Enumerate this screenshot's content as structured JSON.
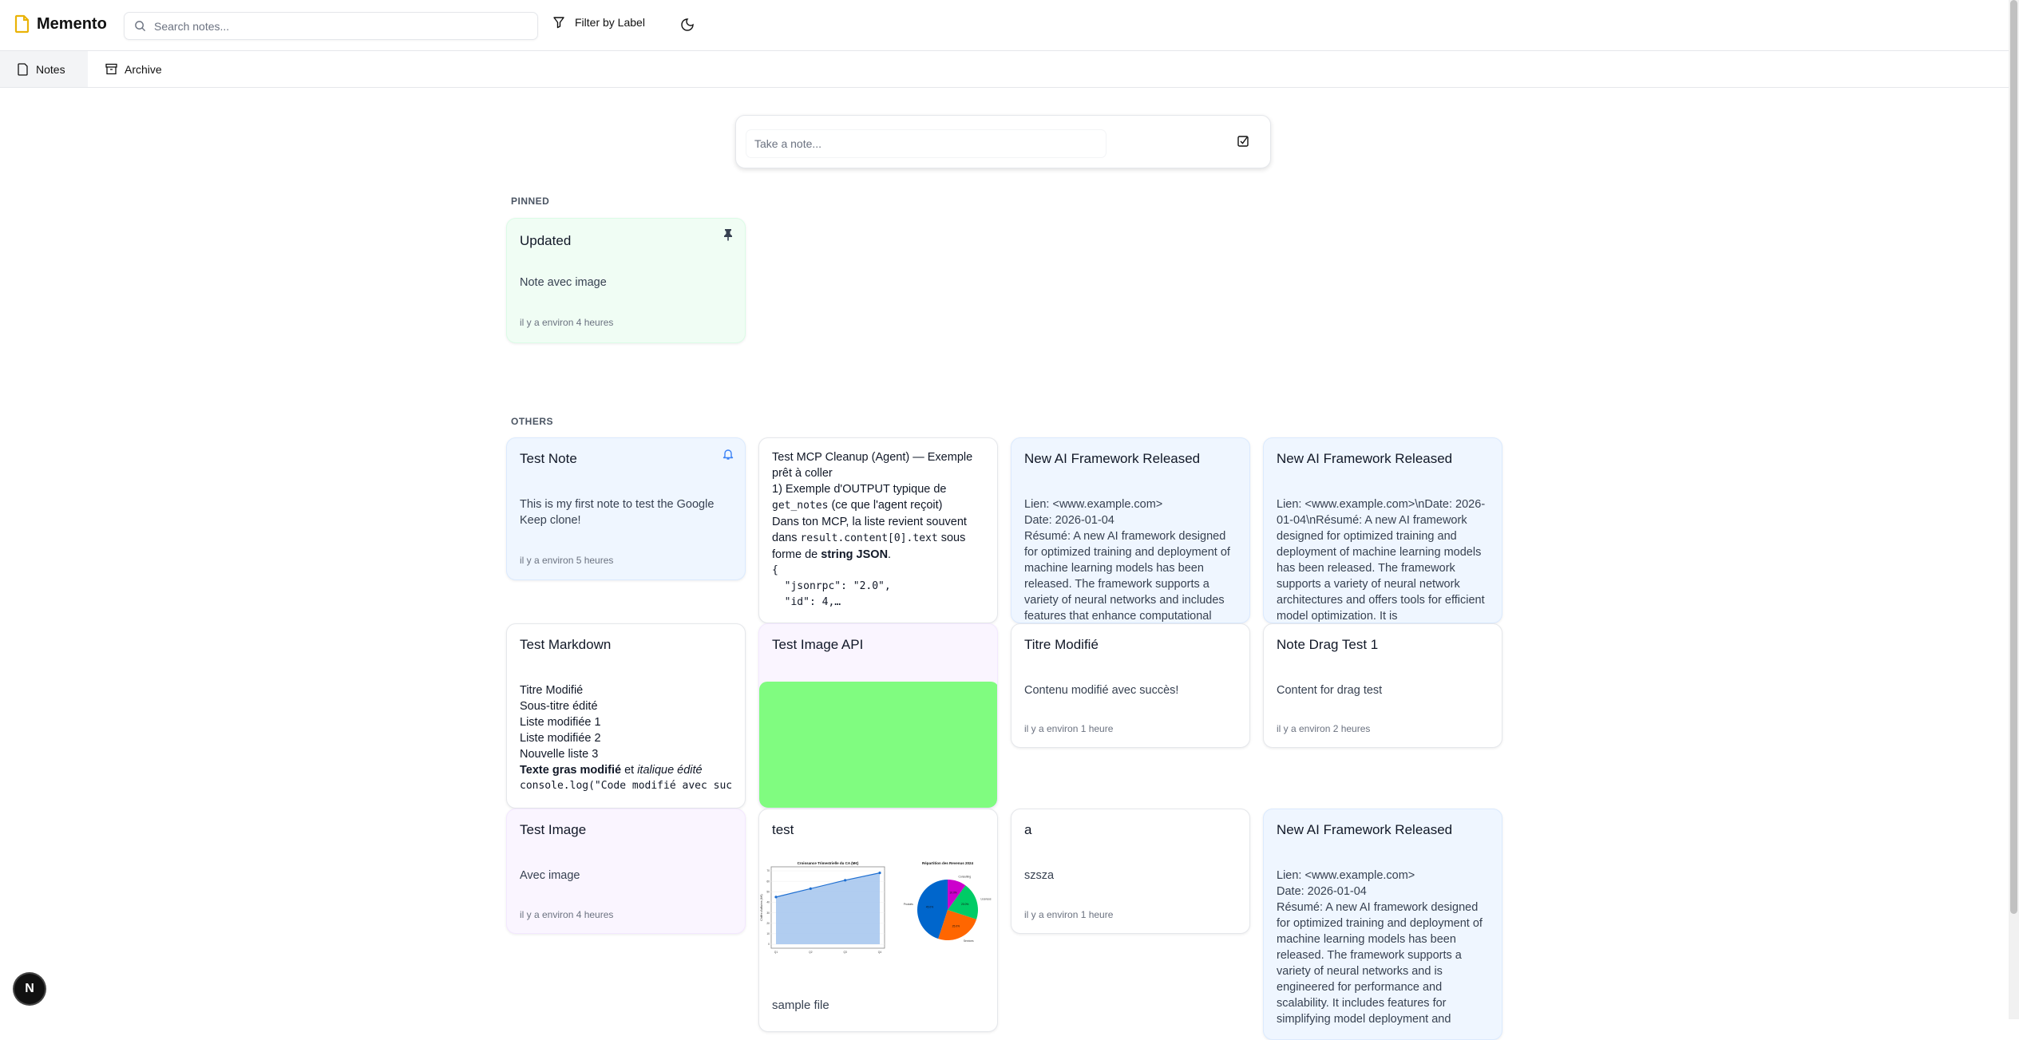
{
  "header": {
    "app_name": "Memento",
    "search_placeholder": "Search notes...",
    "filter_label": "Filter by Label",
    "brand_color": "#eab308"
  },
  "tabs": [
    {
      "label": "Notes",
      "icon": "file-icon",
      "active": true
    },
    {
      "label": "Archive",
      "icon": "archive-icon"
    }
  ],
  "composer": {
    "placeholder": "Take a note...",
    "icon": "checkbox-icon"
  },
  "sections": {
    "pinned": "PINNED",
    "others": "OTHERS"
  },
  "notes": {
    "updated": {
      "title": "Updated",
      "body": "Note avec image",
      "time": "il y a environ 4 heures",
      "color": "#f0fdf4",
      "icon": "pin-icon"
    },
    "test_note": {
      "title": "Test Note",
      "body": "This is my first note to test the Google Keep clone!",
      "time": "il y a environ 5 heures",
      "color": "#eff6ff",
      "icon": "bell-icon"
    },
    "mcp": {
      "line1": "Test MCP Cleanup (Agent) — Exemple prêt à coller",
      "line2": "1) Exemple d'OUTPUT typique de ",
      "line2_code": "get_notes",
      "line2_end": " (ce que l'agent reçoit)",
      "line3": "Dans ton MCP, la liste revient souvent dans ",
      "line3_code": "result.content[0].text",
      "line3_end": " sous forme de ",
      "line3_bold": "string JSON",
      "line3_dot": ".",
      "code": "{\n  \"jsonrpc\": \"2.0\",\n  \"id\": 4,…"
    },
    "ai1": {
      "title": "New AI Framework Released",
      "body": "Lien: <www.example.com>\nDate: 2026-01-04\nRésumé: A new AI framework designed for optimized training and deployment of machine learning models has been released. The framework supports a variety of neural networks and includes features that enhance computational"
    },
    "ai2": {
      "title": "New AI Framework Released",
      "body": "Lien: <www.example.com>\\nDate: 2026-01-04\\nRésumé: A new AI framework designed for optimized training and deployment of machine learning models has been released. The framework supports a variety of neural network architectures and offers tools for efficient model optimization. It is"
    },
    "markdown": {
      "title": "Test Markdown",
      "lines": [
        "Titre Modifié",
        "Sous-titre édité",
        "Liste modifiée 1",
        "Liste modifiée 2",
        "Nouvelle liste 3"
      ],
      "bold": "Texte gras modifié",
      "mid": " et ",
      "italic": "italique édité",
      "code": "console.log(\"Code modifié avec succès\")"
    },
    "image_api": {
      "title": "Test Image API",
      "image_color": "#80fc80"
    },
    "titre": {
      "title": "Titre Modifié",
      "body": "Contenu modifié avec succès!",
      "time": "il y a environ 1 heure"
    },
    "drag": {
      "title": "Note Drag Test 1",
      "body": "Content for drag test",
      "time": "il y a environ 2 heures"
    },
    "test_image": {
      "title": "Test Image",
      "body": "Avec image",
      "time": "il y a environ 4 heures"
    },
    "test": {
      "title": "test",
      "body": "sample file"
    },
    "a": {
      "title": "a",
      "body": "szsza",
      "time": "il y a environ 1 heure"
    },
    "ai3": {
      "title": "New AI Framework Released",
      "body": "Lien: <www.example.com>\nDate: 2026-01-04\nRésumé: A new AI framework designed for optimized training and deployment of machine learning models has been released. The framework supports a variety of neural networks and is engineered for performance and scalability. It includes features for simplifying model deployment and"
    }
  },
  "chart_data": [
    {
      "type": "area",
      "title": "Croissance Trimestrielle du CA (M€)",
      "ylabel": "Chiffre d'affaires (M€)",
      "categories": [
        "Q1",
        "Q2",
        "Q3",
        "Q4"
      ],
      "values": [
        45,
        53,
        61,
        68
      ],
      "ylim": [
        0,
        70
      ],
      "yticks": [
        0,
        10,
        20,
        30,
        40,
        50,
        60,
        70
      ],
      "grid": true,
      "color": "#1f6fd1"
    },
    {
      "type": "pie",
      "title": "Répartition des Revenus 2024",
      "categories": [
        "Produits",
        "Services",
        "Licences",
        "Consulting"
      ],
      "values": [
        45.0,
        25.0,
        20.0,
        10.0
      ],
      "labels": [
        "45.0%",
        "25.0%",
        "20.0%",
        "10.0%"
      ],
      "colors": [
        "#0066cc",
        "#ff6600",
        "#00cc66",
        "#cc00cc"
      ]
    }
  ],
  "avatar": {
    "letter": "N"
  }
}
